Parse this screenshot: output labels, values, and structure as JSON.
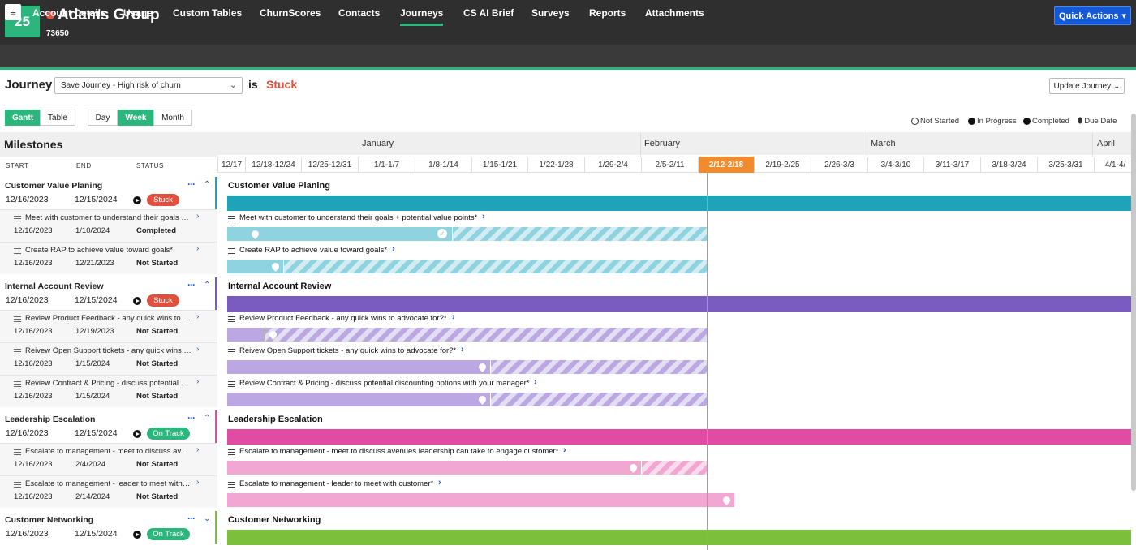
{
  "header": {
    "badge": "25",
    "account_name": "Adams Group",
    "account_id": "73650",
    "quick_actions": "Quick Actions"
  },
  "nav": {
    "menu_icon": "hamburger-icon",
    "tabs": [
      "Account Details",
      "Usage",
      "Custom Tables",
      "ChurnScores",
      "Contacts",
      "Journeys",
      "CS AI Brief",
      "Surveys",
      "Reports",
      "Attachments"
    ],
    "active": "Journeys"
  },
  "journey": {
    "label": "Journey",
    "selected": "Save Journey - High risk of churn",
    "is": "is",
    "state": "Stuck",
    "update_button": "Update Journey"
  },
  "view": {
    "mode": [
      "Gantt",
      "Table"
    ],
    "scale": [
      "Day",
      "Week",
      "Month"
    ],
    "selected_mode": "Gantt",
    "selected_scale": "Week"
  },
  "legend": [
    "Not Started",
    "In Progress",
    "Completed",
    "Due Date"
  ],
  "milestones_panel": {
    "title": "Milestones",
    "columns": [
      "START",
      "END",
      "STATUS"
    ]
  },
  "timeline": {
    "months": [
      "January",
      "February",
      "March",
      "April"
    ],
    "weeks": [
      "12/17",
      "12/18-12/24",
      "12/25-12/31",
      "1/1-1/7",
      "1/8-1/14",
      "1/15-1/21",
      "1/22-1/28",
      "1/29-2/4",
      "2/5-2/11",
      "2/12-2/18",
      "2/19-2/25",
      "2/26-3/3",
      "3/4-3/10",
      "3/11-3/17",
      "3/18-3/24",
      "3/25-3/31",
      "4/1-4/"
    ],
    "current_week": "2/12-2/18"
  },
  "groups": [
    {
      "name": "Customer Value Planing",
      "start": "12/16/2023",
      "end": "12/15/2024",
      "status": "Stuck",
      "color": "#1fa3b9",
      "light": "#8fd3e0",
      "tasks": [
        {
          "name": "Meet with customer to understand their goals + potential value points*",
          "start": "12/16/2023",
          "end": "1/10/2024",
          "status": "Completed",
          "progress": 1.0
        },
        {
          "name": "Create RAP to achieve value toward goals*",
          "start": "12/16/2023",
          "end": "12/21/2023",
          "status": "Not Started",
          "progress": 0.0
        }
      ]
    },
    {
      "name": "Internal Account Review",
      "start": "12/16/2023",
      "end": "12/15/2024",
      "status": "Stuck",
      "color": "#7a5cc0",
      "light": "#bba8e3",
      "tasks": [
        {
          "name": "Review Product Feedback - any quick wins to advocate for?*",
          "start": "12/16/2023",
          "end": "12/19/2023",
          "status": "Not Started",
          "progress": 0.0
        },
        {
          "name": "Reivew Open Support tickets - any quick wins to advocate for?*",
          "start": "12/16/2023",
          "end": "1/15/2024",
          "status": "Not Started",
          "progress": 0.0
        },
        {
          "name": "Review Contract & Pricing - discuss potential discounting options with your manager*",
          "start": "12/16/2023",
          "end": "1/15/2024",
          "status": "Not Started",
          "progress": 0.0
        }
      ]
    },
    {
      "name": "Leadership Escalation",
      "start": "12/16/2023",
      "end": "12/15/2024",
      "status": "On Track",
      "color": "#e04ba3",
      "light": "#f2a6d2",
      "tasks": [
        {
          "name": "Escalate to management - meet to discuss avenues leadership can take to engage customer*",
          "start": "12/16/2023",
          "end": "2/4/2024",
          "status": "Not Started",
          "progress": 0.0
        },
        {
          "name": "Escalate to management - leader to meet with customer*",
          "start": "12/16/2023",
          "end": "2/14/2024",
          "status": "Not Started",
          "progress": 0.0
        }
      ]
    },
    {
      "name": "Customer Networking",
      "start": "12/16/2023",
      "end": "12/15/2024",
      "status": "On Track",
      "color": "#7bbf3a",
      "light": "#b9dd93",
      "tasks": []
    }
  ]
}
